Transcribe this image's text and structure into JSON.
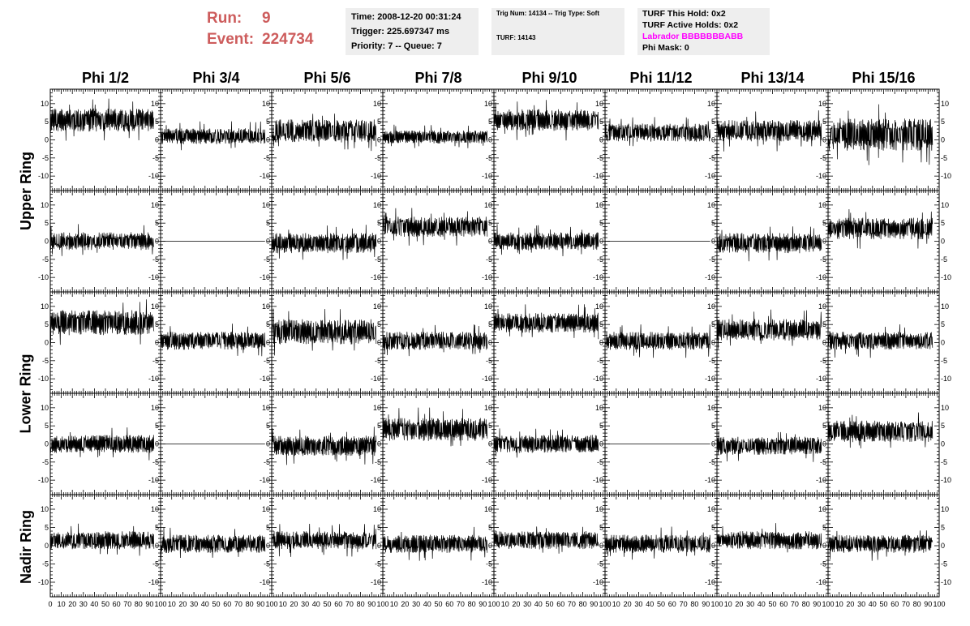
{
  "header": {
    "run_label": "Run:",
    "run_value": "9",
    "event_label": "Event:",
    "event_value": "224734",
    "time_line": "Time: 2008-12-20 00:31:24",
    "trigger_line": "Trigger: 225.697347 ms",
    "priority_line": "Priority: 7 -- Queue: 7",
    "trig_num_line": "Trig Num: 14134 -- Trig Type: Soft",
    "turf_line": "TURF: 14143",
    "turf_hold_line": "TURF This Hold: 0x2",
    "turf_active_line": "TURF Active Holds: 0x2",
    "labrador_line": "Labrador BBBBBBBABB",
    "phi_mask_line": "Phi Mask: 0"
  },
  "colors": {
    "title_run": "#cd5c5c",
    "info_box_bg": "#eeeeee",
    "labrador_text": "#ff00ff",
    "trace": "#000000"
  },
  "columns": [
    "Phi 1/2",
    "Phi 3/4",
    "Phi 5/6",
    "Phi 7/8",
    "Phi 9/10",
    "Phi 11/12",
    "Phi 13/14",
    "Phi 15/16"
  ],
  "rows": [
    "Upper Ring",
    "Lower Ring",
    "Nadir Ring"
  ],
  "chart_data": {
    "type": "line",
    "description": "Grid of waveform traces, 5 panel rows x 8 Phi columns; y values estimated as baseline level and noise amplitude per panel",
    "xlim": [
      0,
      100
    ],
    "ylim": [
      -14,
      14
    ],
    "y_ticks": [
      "-10",
      "-5",
      "0",
      "5",
      "10"
    ],
    "x_ticks": [
      "0",
      "10",
      "20",
      "30",
      "40",
      "50",
      "60",
      "70",
      "80",
      "90",
      "100"
    ],
    "x_tick_labels_last_panel": [
      "10",
      "20",
      "30",
      "40",
      "50",
      "60",
      "70",
      "80",
      "90",
      "100"
    ],
    "samples_per_trace": 260,
    "trace_x_end": 94,
    "panels": [
      [
        {
          "mean": 5.5,
          "amp": 3.2
        },
        {
          "mean": 1.0,
          "amp": 2.2
        },
        {
          "mean": 2.5,
          "amp": 3.2
        },
        {
          "mean": 0.8,
          "amp": 1.8
        },
        {
          "mean": 5.5,
          "amp": 3.0
        },
        {
          "mean": 2.0,
          "amp": 2.5
        },
        {
          "mean": 2.5,
          "amp": 3.0
        },
        {
          "mean": 1.5,
          "amp": 4.5
        }
      ],
      [
        {
          "mean": 0.0,
          "amp": 2.5
        },
        {
          "mean": 0.0,
          "amp": 0.0
        },
        {
          "mean": -0.5,
          "amp": 2.8
        },
        {
          "mean": 4.0,
          "amp": 2.8
        },
        {
          "mean": 0.0,
          "amp": 2.5
        },
        {
          "mean": 0.0,
          "amp": 0.0
        },
        {
          "mean": -0.5,
          "amp": 2.8
        },
        {
          "mean": 3.5,
          "amp": 3.0
        }
      ],
      [
        {
          "mean": 5.5,
          "amp": 3.5
        },
        {
          "mean": 0.5,
          "amp": 2.5
        },
        {
          "mean": 3.0,
          "amp": 3.5
        },
        {
          "mean": 0.5,
          "amp": 2.5
        },
        {
          "mean": 5.5,
          "amp": 2.8
        },
        {
          "mean": 0.5,
          "amp": 2.5
        },
        {
          "mean": 3.5,
          "amp": 3.0
        },
        {
          "mean": 0.5,
          "amp": 2.5
        }
      ],
      [
        {
          "mean": 0.0,
          "amp": 2.5
        },
        {
          "mean": 0.0,
          "amp": 0.0
        },
        {
          "mean": -0.5,
          "amp": 2.8
        },
        {
          "mean": 4.0,
          "amp": 3.2
        },
        {
          "mean": 0.0,
          "amp": 2.5
        },
        {
          "mean": 0.0,
          "amp": 0.0
        },
        {
          "mean": -0.5,
          "amp": 2.5
        },
        {
          "mean": 3.5,
          "amp": 3.0
        }
      ],
      [
        {
          "mean": 1.5,
          "amp": 2.5
        },
        {
          "mean": 0.5,
          "amp": 2.5
        },
        {
          "mean": 1.5,
          "amp": 2.5
        },
        {
          "mean": 0.5,
          "amp": 2.5
        },
        {
          "mean": 1.5,
          "amp": 2.5
        },
        {
          "mean": 0.5,
          "amp": 2.5
        },
        {
          "mean": 1.5,
          "amp": 2.5
        },
        {
          "mean": 0.5,
          "amp": 2.5
        }
      ]
    ]
  }
}
